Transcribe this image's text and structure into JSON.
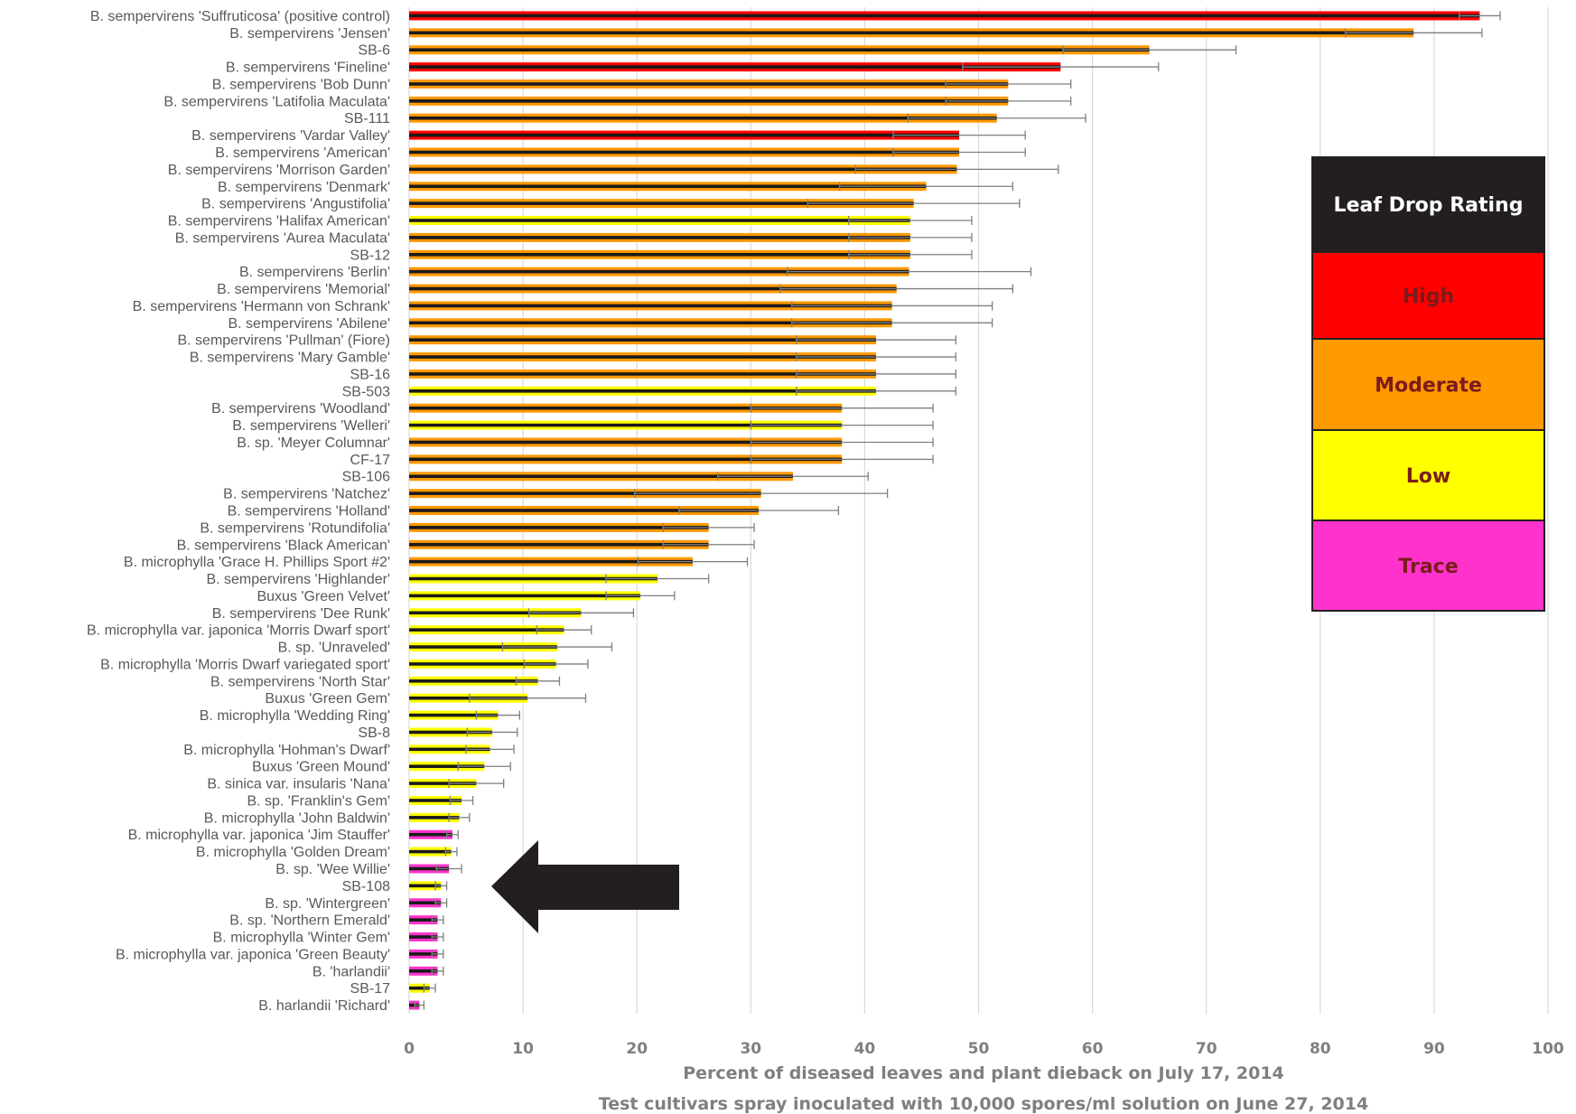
{
  "chart_data": {
    "type": "bar",
    "orientation": "horizontal",
    "xlabel": "Percent of diseased leaves and plant dieback on July 17, 2014",
    "xlabel2": "Test cultivars spray inoculated with 10,000 spores/ml solution on June 27, 2014",
    "xlim": [
      0,
      100
    ],
    "xticks": [
      "0",
      "10",
      "20",
      "30",
      "40",
      "50",
      "60",
      "70",
      "80",
      "90",
      "100"
    ],
    "grid": "vertical",
    "bar_outline_color": "#1a1a1a",
    "errorbar_color": "#7f7f7f",
    "categories": [
      "B. sempervirens 'Suffruticosa' (positive control)",
      "B. sempervirens 'Jensen'",
      "SB-6",
      "B. sempervirens 'Fineline'",
      "B. sempervirens 'Bob Dunn'",
      "B. sempervirens 'Latifolia Maculata'",
      "SB-111",
      "B. sempervirens 'Vardar Valley'",
      "B. sempervirens 'American'",
      "B. sempervirens 'Morrison Garden'",
      "B. sempervirens 'Denmark'",
      "B. sempervirens 'Angustifolia'",
      "B. sempervirens 'Halifax American'",
      "B. sempervirens 'Aurea Maculata'",
      "SB-12",
      "B. sempervirens 'Berlin'",
      "B. sempervirens 'Memorial'",
      "B. sempervirens 'Hermann von Schrank'",
      "B. sempervirens 'Abilene'",
      "B. sempervirens 'Pullman' (Fiore)",
      "B. sempervirens 'Mary Gamble'",
      "SB-16",
      "SB-503",
      "B. sempervirens 'Woodland'",
      "B. sempervirens 'Welleri'",
      "B. sp. 'Meyer Columnar'",
      "CF-17",
      "SB-106",
      "B. sempervirens 'Natchez'",
      "B. sempervirens 'Holland'",
      "B. sempervirens 'Rotundifolia'",
      "B. sempervirens 'Black American'",
      "B. microphylla 'Grace H. Phillips Sport #2'",
      "B. sempervirens 'Highlander'",
      "Buxus 'Green Velvet'",
      "B. sempervirens 'Dee Runk'",
      "B. microphylla var. japonica 'Morris Dwarf sport'",
      "B. sp. 'Unraveled'",
      "B. microphylla 'Morris Dwarf variegated sport'",
      "B. sempervirens 'North Star'",
      "Buxus 'Green Gem'",
      "B. microphylla 'Wedding Ring'",
      "SB-8",
      "B. microphylla 'Hohman's Dwarf'",
      "Buxus 'Green Mound'",
      "B. sinica var. insularis 'Nana'",
      "B. sp. 'Franklin's Gem'",
      "B. microphylla 'John Baldwin'",
      "B. microphylla var. japonica 'Jim Stauffer'",
      "B. microphylla 'Golden Dream'",
      "B. sp. 'Wee Willie'",
      "SB-108",
      "B. sp. 'Wintergreen'",
      "B. sp. 'Northern Emerald'",
      "B. microphylla 'Winter Gem'",
      "B. microphylla var. japonica 'Green Beauty'",
      "B. 'harlandii'",
      "SB-17",
      "B. harlandii 'Richard'"
    ],
    "values": [
      94.0,
      88.2,
      65.0,
      57.2,
      52.6,
      52.6,
      51.6,
      48.3,
      48.3,
      48.1,
      45.4,
      44.3,
      44.0,
      44.0,
      44.0,
      43.9,
      42.8,
      42.4,
      42.4,
      41.0,
      41.0,
      41.0,
      41.0,
      38.0,
      38.0,
      38.0,
      38.0,
      33.7,
      30.9,
      30.7,
      26.3,
      26.3,
      24.9,
      21.8,
      20.3,
      15.1,
      13.6,
      13.0,
      12.9,
      11.3,
      10.4,
      7.8,
      7.3,
      7.1,
      6.6,
      5.9,
      4.6,
      4.4,
      3.8,
      3.7,
      3.5,
      2.8,
      2.8,
      2.5,
      2.5,
      2.5,
      2.5,
      1.8,
      0.9
    ],
    "errors": [
      1.8,
      6.0,
      7.6,
      8.6,
      5.5,
      5.5,
      7.8,
      5.8,
      5.8,
      8.9,
      7.6,
      9.3,
      5.4,
      5.4,
      5.4,
      10.7,
      10.2,
      8.8,
      8.8,
      7.0,
      7.0,
      7.0,
      7.0,
      8.0,
      8.0,
      8.0,
      8.0,
      6.6,
      11.1,
      7.0,
      4.0,
      4.0,
      4.8,
      4.5,
      3.0,
      4.6,
      2.4,
      4.8,
      2.8,
      1.9,
      5.1,
      1.9,
      2.2,
      2.1,
      2.3,
      2.4,
      1.0,
      0.9,
      0.5,
      0.5,
      1.1,
      0.5,
      0.5,
      0.5,
      0.5,
      0.5,
      0.5,
      0.5,
      0.4
    ],
    "ratings": [
      "High",
      "Moderate",
      "Moderate",
      "High",
      "Moderate",
      "Moderate",
      "Moderate",
      "High",
      "Moderate",
      "Moderate",
      "Moderate",
      "Moderate",
      "Low",
      "Moderate",
      "Moderate",
      "Moderate",
      "Moderate",
      "Moderate",
      "Moderate",
      "Moderate",
      "Moderate",
      "Moderate",
      "Low",
      "Moderate",
      "Low",
      "Moderate",
      "Moderate",
      "Moderate",
      "Moderate",
      "Moderate",
      "Moderate",
      "Moderate",
      "Moderate",
      "Low",
      "Low",
      "Low",
      "Low",
      "Low",
      "Low",
      "Low",
      "Low",
      "Low",
      "Low",
      "Low",
      "Low",
      "Low",
      "Low",
      "Low",
      "Trace",
      "Low",
      "Trace",
      "Low",
      "Trace",
      "Trace",
      "Trace",
      "Trace",
      "Trace",
      "Low",
      "Trace"
    ],
    "legend": {
      "title": "Leaf Drop Rating",
      "position": "right",
      "title_bg": "#231f20",
      "title_color": "#ffffff",
      "items": [
        {
          "label": "High",
          "color": "#ff0000"
        },
        {
          "label": "Moderate",
          "color": "#ff9900"
        },
        {
          "label": "Low",
          "color": "#ffff00"
        },
        {
          "label": "Trace",
          "color": "#ff33cc"
        }
      ]
    },
    "annotation": {
      "shape": "arrow-left",
      "color": "#231f20",
      "points_to": "SB-108"
    }
  }
}
